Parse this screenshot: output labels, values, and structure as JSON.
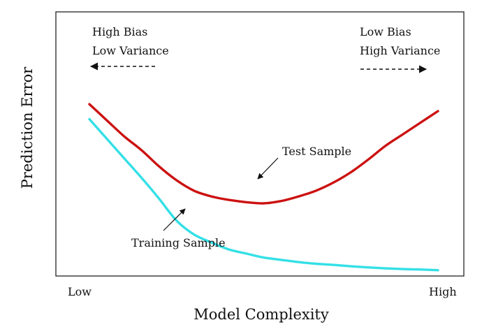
{
  "chart_data": {
    "type": "line",
    "title": "",
    "xlabel": "Model Complexity",
    "ylabel": "Prediction Error",
    "x_tick_labels": [
      "Low",
      "High"
    ],
    "xlim": [
      0,
      10
    ],
    "ylim": [
      0,
      10
    ],
    "grid": false,
    "legend": "none",
    "series": [
      {
        "name": "Test Sample",
        "color": "#cc1111",
        "x": [
          0,
          0.5,
          1.0,
          1.5,
          2.0,
          2.5,
          3.0,
          3.5,
          4.0,
          4.5,
          5.0,
          5.5,
          6.0,
          6.5,
          7.0,
          7.5,
          8.0,
          8.5,
          9.0,
          9.5,
          10.0
        ],
        "y": [
          7.3,
          6.6,
          5.9,
          5.3,
          4.6,
          4.0,
          3.55,
          3.3,
          3.15,
          3.05,
          3.0,
          3.1,
          3.3,
          3.55,
          3.9,
          4.35,
          4.9,
          5.5,
          6.0,
          6.5,
          7.0
        ]
      },
      {
        "name": "Training Sample",
        "color": "#33e0e6",
        "x": [
          0,
          0.5,
          1.0,
          1.5,
          2.0,
          2.5,
          3.0,
          3.5,
          4.0,
          4.5,
          5.0,
          5.5,
          6.0,
          6.5,
          7.0,
          7.5,
          8.0,
          8.5,
          9.0,
          9.5,
          10.0
        ],
        "y": [
          6.65,
          5.8,
          4.95,
          4.1,
          3.2,
          2.25,
          1.65,
          1.3,
          1.0,
          0.82,
          0.65,
          0.55,
          0.45,
          0.38,
          0.33,
          0.27,
          0.22,
          0.18,
          0.15,
          0.13,
          0.1
        ]
      }
    ],
    "annotations": [
      {
        "name": "high-bias-low-variance",
        "lines": [
          "High Bias",
          "Low Variance"
        ],
        "arrow": "left"
      },
      {
        "name": "low-bias-high-variance",
        "lines": [
          "Low Bias",
          "High Variance"
        ],
        "arrow": "right"
      },
      {
        "name": "test-sample-label",
        "text": "Test Sample"
      },
      {
        "name": "training-sample-label",
        "text": "Training Sample"
      }
    ]
  }
}
